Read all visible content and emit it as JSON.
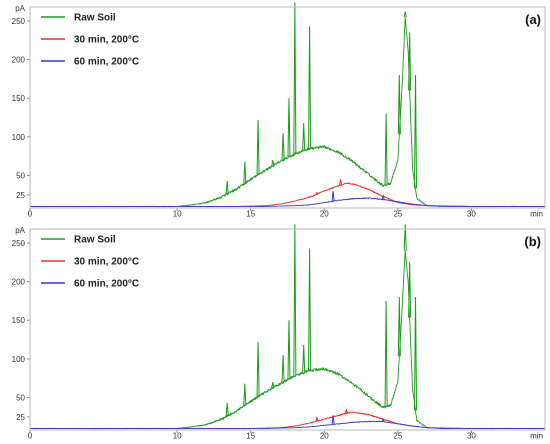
{
  "chart_data": [
    {
      "type": "line",
      "panel_label": "(a)",
      "y_unit": "pA",
      "x_unit": "min",
      "xlim": [
        0,
        35
      ],
      "ylim": [
        8,
        268
      ],
      "x_ticks": [
        0,
        10,
        15,
        20,
        25,
        30
      ],
      "y_ticks": [
        25,
        50,
        100,
        150,
        200,
        250
      ],
      "legend_position": "top-left",
      "series": [
        {
          "name": "Raw Soil",
          "color": "#1e9a1e",
          "x": [
            0,
            5,
            10,
            11,
            12,
            13,
            14,
            15,
            16,
            17,
            18,
            19,
            20,
            21,
            22,
            23,
            23.5,
            24,
            24.5,
            25,
            25.3,
            25.5,
            25.7,
            26,
            26.3,
            27,
            30,
            35
          ],
          "y": [
            10,
            10,
            10,
            12,
            15,
            22,
            32,
            45,
            57,
            68,
            78,
            85,
            87,
            80,
            67,
            52,
            44,
            37,
            40,
            70,
            170,
            255,
            210,
            60,
            20,
            11,
            10,
            10
          ],
          "peaks": [
            {
              "x": 13.4,
              "y": 43
            },
            {
              "x": 14.6,
              "y": 68
            },
            {
              "x": 15.5,
              "y": 122
            },
            {
              "x": 16.5,
              "y": 70
            },
            {
              "x": 17.2,
              "y": 105
            },
            {
              "x": 17.6,
              "y": 150
            },
            {
              "x": 18.0,
              "y": 280
            },
            {
              "x": 18.6,
              "y": 118
            },
            {
              "x": 19.0,
              "y": 243
            },
            {
              "x": 24.2,
              "y": 130
            },
            {
              "x": 25.1,
              "y": 180
            },
            {
              "x": 25.5,
              "y": 262
            },
            {
              "x": 25.8,
              "y": 235
            },
            {
              "x": 26.2,
              "y": 180
            }
          ]
        },
        {
          "name": "30 min, 200°C",
          "color": "#e83030",
          "x": [
            0,
            10,
            14,
            16,
            17,
            18,
            19,
            20,
            21,
            21.5,
            22,
            23,
            24,
            25,
            26,
            27,
            30,
            35
          ],
          "y": [
            10,
            10,
            10,
            11,
            13,
            17,
            22,
            30,
            37,
            40,
            39,
            32,
            23,
            15,
            12,
            11,
            10,
            10
          ],
          "peaks": [
            {
              "x": 19.5,
              "y": 28
            },
            {
              "x": 21.1,
              "y": 45
            }
          ]
        },
        {
          "name": "60 min, 200°C",
          "color": "#3a3ad0",
          "x": [
            0,
            10,
            16,
            18,
            19,
            20,
            21,
            22,
            23,
            24,
            25,
            26,
            27,
            28,
            30,
            35
          ],
          "y": [
            10,
            10,
            10,
            11,
            12,
            15,
            18,
            20,
            21,
            19,
            16,
            13,
            11,
            10,
            10,
            10
          ],
          "peaks": [
            {
              "x": 20.6,
              "y": 30
            },
            {
              "x": 24.0,
              "y": 24
            }
          ]
        }
      ]
    },
    {
      "type": "line",
      "panel_label": "(b)",
      "y_unit": "pA",
      "x_unit": "min",
      "xlim": [
        0,
        35
      ],
      "ylim": [
        8,
        268
      ],
      "x_ticks": [
        0,
        10,
        15,
        20,
        25,
        30
      ],
      "y_ticks": [
        25,
        50,
        100,
        150,
        200,
        250
      ],
      "legend_position": "top-left",
      "series": [
        {
          "name": "Raw Soil",
          "color": "#1e9a1e",
          "x": [
            0,
            5,
            10,
            11,
            12,
            13,
            14,
            15,
            16,
            17,
            18,
            19,
            20,
            21,
            22,
            23,
            23.5,
            24,
            24.5,
            25,
            25.3,
            25.5,
            25.7,
            26,
            26.3,
            27,
            30,
            35
          ],
          "y": [
            10,
            10,
            10,
            12,
            15,
            22,
            32,
            45,
            57,
            68,
            78,
            85,
            87,
            80,
            67,
            52,
            44,
            37,
            40,
            70,
            170,
            240,
            200,
            60,
            20,
            11,
            10,
            10
          ],
          "peaks": [
            {
              "x": 13.4,
              "y": 43
            },
            {
              "x": 14.6,
              "y": 68
            },
            {
              "x": 15.5,
              "y": 122
            },
            {
              "x": 16.5,
              "y": 70
            },
            {
              "x": 17.2,
              "y": 105
            },
            {
              "x": 17.6,
              "y": 150
            },
            {
              "x": 18.0,
              "y": 280
            },
            {
              "x": 18.6,
              "y": 118
            },
            {
              "x": 19.0,
              "y": 243
            },
            {
              "x": 24.2,
              "y": 175
            },
            {
              "x": 25.1,
              "y": 180
            },
            {
              "x": 25.5,
              "y": 280
            },
            {
              "x": 25.8,
              "y": 225
            },
            {
              "x": 26.2,
              "y": 180
            }
          ]
        },
        {
          "name": "30 min, 200°C",
          "color": "#e83030",
          "x": [
            0,
            10,
            15,
            17,
            18,
            19,
            20,
            21,
            21.5,
            22,
            23,
            24,
            25,
            26,
            27,
            28,
            30,
            35
          ],
          "y": [
            10,
            10,
            10,
            11,
            13,
            17,
            22,
            27,
            30,
            31,
            28,
            22,
            16,
            13,
            11,
            10,
            10,
            10
          ],
          "peaks": [
            {
              "x": 19.5,
              "y": 24
            },
            {
              "x": 21.5,
              "y": 34
            }
          ]
        },
        {
          "name": "60 min, 200°C",
          "color": "#3a3ad0",
          "x": [
            0,
            10,
            16,
            18,
            19,
            20,
            21,
            22,
            23,
            24,
            25,
            26,
            27,
            28,
            30,
            35
          ],
          "y": [
            10,
            10,
            10,
            11,
            12,
            14,
            16,
            18,
            19,
            19,
            16,
            13,
            11,
            10,
            10,
            10
          ],
          "peaks": [
            {
              "x": 20.6,
              "y": 27
            },
            {
              "x": 24.0,
              "y": 22
            }
          ]
        }
      ]
    }
  ]
}
